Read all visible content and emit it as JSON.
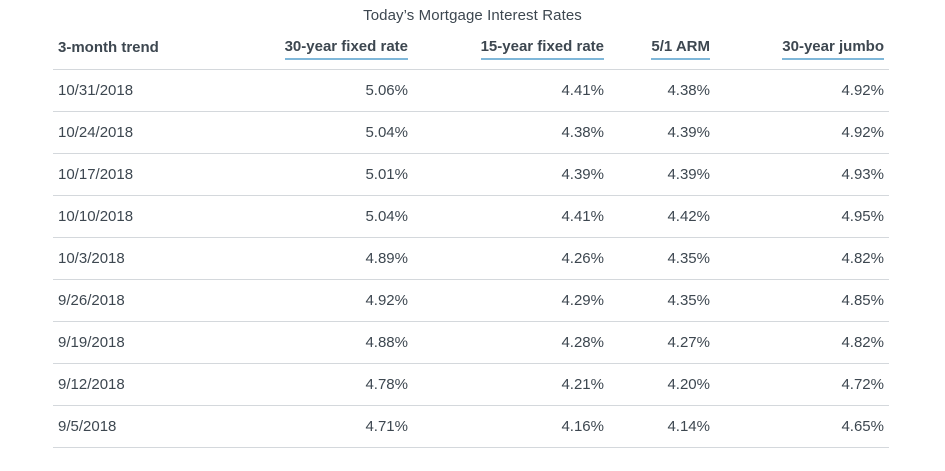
{
  "chart_data": {
    "type": "table",
    "title": "Today’s Mortgage Interest Rates",
    "columns": [
      "3-month trend",
      "30-year fixed rate",
      "15-year fixed rate",
      "5/1 ARM",
      "30-year jumbo"
    ],
    "rows": [
      [
        "10/31/2018",
        "5.06%",
        "4.41%",
        "4.38%",
        "4.92%"
      ],
      [
        "10/24/2018",
        "5.04%",
        "4.38%",
        "4.39%",
        "4.92%"
      ],
      [
        "10/17/2018",
        "5.01%",
        "4.39%",
        "4.39%",
        "4.93%"
      ],
      [
        "10/10/2018",
        "5.04%",
        "4.41%",
        "4.42%",
        "4.95%"
      ],
      [
        "10/3/2018",
        "4.89%",
        "4.26%",
        "4.35%",
        "4.82%"
      ],
      [
        "9/26/2018",
        "4.92%",
        "4.29%",
        "4.35%",
        "4.85%"
      ],
      [
        "9/19/2018",
        "4.88%",
        "4.28%",
        "4.27%",
        "4.82%"
      ],
      [
        "9/12/2018",
        "4.78%",
        "4.21%",
        "4.20%",
        "4.72%"
      ],
      [
        "9/5/2018",
        "4.71%",
        "4.16%",
        "4.14%",
        "4.65%"
      ]
    ]
  },
  "colors": {
    "text": "#3d4750",
    "rule": "#d4d8dc",
    "header_underline": "#7fb7d9"
  }
}
